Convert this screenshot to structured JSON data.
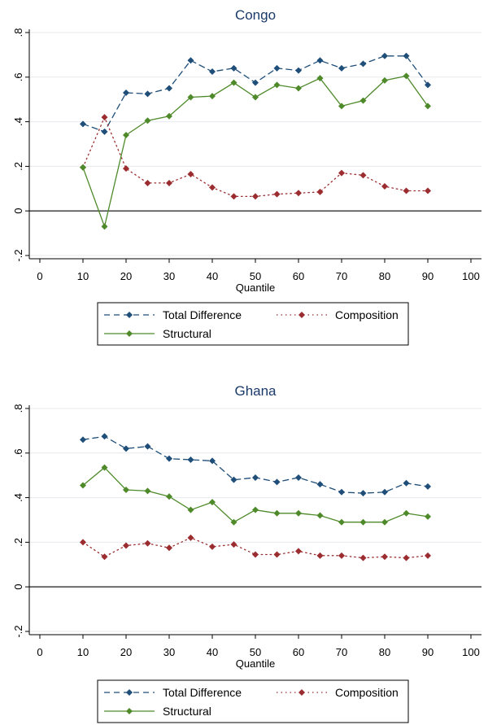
{
  "chart_data": [
    {
      "type": "line",
      "title": "Congo",
      "xlabel": "Quantile",
      "ylabel": "",
      "xlim": [
        0,
        100
      ],
      "ylim": [
        -0.2,
        0.8
      ],
      "xticks": [
        "0",
        "10",
        "20",
        "30",
        "40",
        "50",
        "60",
        "70",
        "80",
        "90",
        "100"
      ],
      "yticks": [
        "-.2",
        "0",
        ".2",
        ".4",
        ".6",
        ".8"
      ],
      "grid": true,
      "legend_position": "bottom",
      "x": [
        10,
        15,
        20,
        25,
        30,
        35,
        40,
        45,
        50,
        55,
        60,
        65,
        70,
        75,
        80,
        85,
        90
      ],
      "series": [
        {
          "name": "Total Difference",
          "color": "#1f4e79",
          "style": "dashed",
          "values": [
            0.39,
            0.355,
            0.53,
            0.525,
            0.55,
            0.675,
            0.625,
            0.64,
            0.575,
            0.64,
            0.63,
            0.675,
            0.64,
            0.66,
            0.695,
            0.695,
            0.565
          ]
        },
        {
          "name": "Composition",
          "color": "#9b2d30",
          "style": "dotted",
          "values": [
            0.195,
            0.42,
            0.19,
            0.125,
            0.125,
            0.165,
            0.105,
            0.065,
            0.065,
            0.075,
            0.08,
            0.085,
            0.17,
            0.16,
            0.11,
            0.09,
            0.09
          ]
        },
        {
          "name": "Structural",
          "color": "#4e8a2a",
          "style": "solid",
          "values": [
            0.195,
            -0.07,
            0.34,
            0.405,
            0.425,
            0.51,
            0.515,
            0.575,
            0.51,
            0.565,
            0.55,
            0.595,
            0.47,
            0.495,
            0.585,
            0.605,
            0.47
          ]
        }
      ]
    },
    {
      "type": "line",
      "title": "Ghana",
      "xlabel": "Quantile",
      "ylabel": "",
      "xlim": [
        0,
        100
      ],
      "ylim": [
        -0.2,
        0.8
      ],
      "xticks": [
        "0",
        "10",
        "20",
        "30",
        "40",
        "50",
        "60",
        "70",
        "80",
        "90",
        "100"
      ],
      "yticks": [
        "-.2",
        "0",
        ".2",
        ".4",
        ".6",
        ".8"
      ],
      "grid": true,
      "legend_position": "bottom",
      "x": [
        10,
        15,
        20,
        25,
        30,
        35,
        40,
        45,
        50,
        55,
        60,
        65,
        70,
        75,
        80,
        85,
        90
      ],
      "series": [
        {
          "name": "Total Difference",
          "color": "#1f4e79",
          "style": "dashed",
          "values": [
            0.66,
            0.675,
            0.62,
            0.63,
            0.575,
            0.57,
            0.565,
            0.48,
            0.49,
            0.47,
            0.49,
            0.46,
            0.425,
            0.42,
            0.425,
            0.465,
            0.45
          ]
        },
        {
          "name": "Composition",
          "color": "#9b2d30",
          "style": "dotted",
          "values": [
            0.2,
            0.135,
            0.185,
            0.195,
            0.175,
            0.22,
            0.18,
            0.19,
            0.145,
            0.145,
            0.16,
            0.14,
            0.14,
            0.13,
            0.135,
            0.13,
            0.14
          ]
        },
        {
          "name": "Structural",
          "color": "#4e8a2a",
          "style": "solid",
          "values": [
            0.455,
            0.535,
            0.435,
            0.43,
            0.405,
            0.345,
            0.38,
            0.29,
            0.345,
            0.33,
            0.33,
            0.32,
            0.29,
            0.29,
            0.29,
            0.33,
            0.315
          ]
        }
      ]
    }
  ]
}
